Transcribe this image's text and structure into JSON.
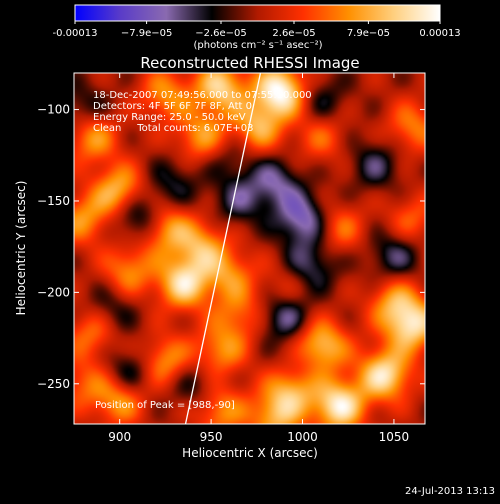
{
  "colorbar": {
    "tick_labels": [
      "-0.00013",
      "−7.9e−05",
      "−2.6e−05",
      "2.6e−05",
      "7.9e−05",
      "0.00013"
    ],
    "tick_values": [
      -0.00013,
      -7.9e-05,
      -2.6e-05,
      2.6e-05,
      7.9e-05,
      0.00013
    ],
    "range": [
      -0.00013,
      0.00013
    ],
    "unit_label": "(photons cm⁻² s⁻¹ asec⁻²)",
    "colors": [
      "#0000ff",
      "#5a3cc8",
      "#8a6ab0",
      "#000000",
      "#b01a00",
      "#ff3000",
      "#ff9000",
      "#ffd080",
      "#ffffff"
    ]
  },
  "image_info": {
    "line1": "18-Dec-2007 07:49:56.000 to 07:55:10.000",
    "line2": "Detectors: 4F 5F 6F 7F 8F, Att 0",
    "line3": "Energy Range: 25.0 - 50.0 keV",
    "line4": "Clean     Total counts: 6.07E+03",
    "peak": "Position of Peak = [988,-90]"
  },
  "footer": {
    "timestamp": "24-Jul-2013 13:13"
  },
  "chart_data": {
    "type": "heatmap",
    "title": "Reconstructed RHESSI Image",
    "xlabel": "Heliocentric X (arcsec)",
    "ylabel": "Heliocentric Y (arcsec)",
    "xlim": [
      875,
      1067
    ],
    "ylim": [
      -272,
      -80
    ],
    "x_ticks": [
      900,
      950,
      1000,
      1050
    ],
    "y_ticks": [
      -250,
      -200,
      -150,
      -100
    ],
    "x_tick_labels": [
      "900",
      "950",
      "1000",
      "1050"
    ],
    "y_tick_labels": [
      "−250",
      "−200",
      "−150",
      "−100"
    ],
    "peak": [
      988,
      -90
    ],
    "limb_line": [
      [
        936,
        -272
      ],
      [
        977,
        -80
      ]
    ],
    "blobs": [
      {
        "x": 988,
        "y": -90,
        "v": 1.0
      },
      {
        "x": 955,
        "y": -88,
        "v": 0.75
      },
      {
        "x": 925,
        "y": -92,
        "v": 0.5
      },
      {
        "x": 885,
        "y": -115,
        "v": 0.55
      },
      {
        "x": 945,
        "y": -115,
        "v": 0.55
      },
      {
        "x": 1010,
        "y": -115,
        "v": 0.35
      },
      {
        "x": 1060,
        "y": -110,
        "v": 0.45
      },
      {
        "x": 900,
        "y": -145,
        "v": 0.7
      },
      {
        "x": 925,
        "y": -165,
        "v": 0.6
      },
      {
        "x": 945,
        "y": -175,
        "v": 0.55
      },
      {
        "x": 880,
        "y": -160,
        "v": 0.5
      },
      {
        "x": 905,
        "y": -188,
        "v": 0.5
      },
      {
        "x": 935,
        "y": -195,
        "v": 0.8
      },
      {
        "x": 960,
        "y": -190,
        "v": 0.45
      },
      {
        "x": 975,
        "y": -110,
        "v": 0.6
      },
      {
        "x": 1020,
        "y": -165,
        "v": 0.4
      },
      {
        "x": 1060,
        "y": -160,
        "v": 0.35
      },
      {
        "x": 1050,
        "y": -205,
        "v": 0.5
      },
      {
        "x": 1060,
        "y": -218,
        "v": 0.8
      },
      {
        "x": 1010,
        "y": -230,
        "v": 0.8
      },
      {
        "x": 995,
        "y": -252,
        "v": 0.65
      },
      {
        "x": 1045,
        "y": -245,
        "v": 0.85
      },
      {
        "x": 1020,
        "y": -262,
        "v": 0.9
      },
      {
        "x": 985,
        "y": -268,
        "v": 0.6
      },
      {
        "x": 955,
        "y": -232,
        "v": 0.5
      },
      {
        "x": 965,
        "y": -212,
        "v": 0.4
      },
      {
        "x": 925,
        "y": -238,
        "v": 0.55
      },
      {
        "x": 885,
        "y": -222,
        "v": 0.45
      },
      {
        "x": 900,
        "y": -258,
        "v": 0.6
      },
      {
        "x": 955,
        "y": -265,
        "v": 0.5
      },
      {
        "x": 880,
        "y": -250,
        "v": 0.35
      },
      {
        "x": 990,
        "y": -200,
        "v": 0.3
      },
      {
        "x": 1000,
        "y": -160,
        "v": -0.6
      },
      {
        "x": 985,
        "y": -140,
        "v": -0.45
      },
      {
        "x": 1005,
        "y": -185,
        "v": -0.4
      },
      {
        "x": 910,
        "y": -158,
        "v": -0.55
      },
      {
        "x": 990,
        "y": -212,
        "v": -0.55
      },
      {
        "x": 1040,
        "y": -130,
        "v": -0.35
      },
      {
        "x": 1010,
        "y": -95,
        "v": -0.3
      },
      {
        "x": 880,
        "y": -100,
        "v": -0.3
      },
      {
        "x": 930,
        "y": -140,
        "v": -0.3
      },
      {
        "x": 1050,
        "y": -180,
        "v": -0.4
      },
      {
        "x": 895,
        "y": -210,
        "v": -0.3
      },
      {
        "x": 905,
        "y": -245,
        "v": -0.45
      },
      {
        "x": 940,
        "y": -250,
        "v": -0.3
      },
      {
        "x": 1000,
        "y": -240,
        "v": -0.3
      },
      {
        "x": 965,
        "y": -150,
        "v": -0.35
      },
      {
        "x": 960,
        "y": -125,
        "v": -0.25
      }
    ]
  }
}
